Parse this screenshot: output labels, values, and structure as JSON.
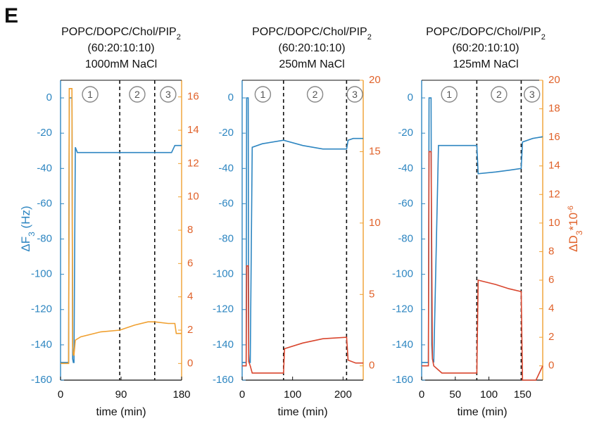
{
  "panel_letter": "E",
  "colors": {
    "frequency": "#2e86c1",
    "dissipation_trace": "#f0a030",
    "dissipation_axis": "#e0622a",
    "freq_trace": "#3f5aa8",
    "diss_trace_red": "#d9462e"
  },
  "ylabel_left": "ΔF",
  "ylabel_left_sub": "3",
  "ylabel_left_unit": " (Hz)",
  "ylabel_right": "ΔD",
  "ylabel_right_sub": "3",
  "ylabel_right_suffix": "*10",
  "ylabel_right_sup": "-6",
  "chart_data": [
    {
      "type": "line",
      "title": [
        "POPC/DOPC/Chol/PIP",
        "(60:20:10:10)",
        "1000mM NaCl"
      ],
      "title_sub": "2",
      "xlabel": "time (min)",
      "xlim": [
        0,
        180
      ],
      "xticks": [
        0,
        90,
        180
      ],
      "ylim_left": [
        -160,
        10
      ],
      "yticks_left": [
        0,
        -20,
        -40,
        -60,
        -80,
        -100,
        -120,
        -140,
        -160
      ],
      "ylim_right": [
        -1,
        17
      ],
      "yticks_right": [
        0,
        2,
        4,
        6,
        8,
        10,
        12,
        14,
        16
      ],
      "phases": [
        "1",
        "2",
        "3"
      ],
      "phase_boundaries": [
        88,
        140
      ],
      "series": [
        {
          "axis": "left",
          "color_key": "frequency",
          "x": [
            0,
            12,
            13,
            15,
            17,
            18,
            19,
            20,
            22,
            25,
            60,
            88,
            120,
            140,
            165,
            170,
            173,
            175,
            180
          ],
          "y": [
            -150,
            -150,
            0,
            0,
            0,
            -148,
            -150,
            -150,
            -28,
            -31,
            -31,
            -31,
            -31,
            -31,
            -31,
            -27,
            -27,
            -27,
            -27
          ]
        },
        {
          "axis": "right",
          "color_key": "dissipation_trace",
          "x": [
            0,
            12,
            13,
            15,
            17,
            18,
            19,
            20,
            22,
            30,
            60,
            88,
            110,
            130,
            140,
            160,
            165,
            170,
            172,
            180
          ],
          "y": [
            0,
            0,
            16.5,
            16.5,
            16.5,
            1.0,
            0.5,
            0.5,
            1.4,
            1.6,
            1.9,
            2.0,
            2.3,
            2.5,
            2.5,
            2.4,
            2.4,
            2.4,
            1.8,
            1.8
          ]
        }
      ]
    },
    {
      "type": "line",
      "title": [
        "POPC/DOPC/Chol/PIP",
        "(60:20:10:10)",
        "250mM NaCl"
      ],
      "title_sub": "2",
      "xlabel": "time (min)",
      "xlim": [
        0,
        240
      ],
      "xticks": [
        0,
        100,
        200
      ],
      "ylim_left": [
        -160,
        10
      ],
      "yticks_left": [
        0,
        -20,
        -40,
        -60,
        -80,
        -100,
        -120,
        -140,
        -160
      ],
      "ylim_right": [
        -1,
        20
      ],
      "yticks_right": [
        0,
        5,
        10,
        15,
        20
      ],
      "phases": [
        "1",
        "2",
        "3"
      ],
      "phase_boundaries": [
        82,
        207
      ],
      "series": [
        {
          "axis": "left",
          "color_key": "frequency",
          "x": [
            0,
            8,
            9,
            11,
            12,
            13,
            14,
            16,
            20,
            40,
            82,
            120,
            160,
            207,
            210,
            220,
            240
          ],
          "y": [
            -150,
            -150,
            0,
            0,
            0,
            -145,
            -150,
            -150,
            -28,
            -26,
            -24,
            -27,
            -29,
            -29,
            -24,
            -23,
            -23
          ]
        },
        {
          "axis": "right",
          "color_key": "diss_trace_red",
          "x": [
            0,
            8,
            9,
            11,
            12,
            13,
            16,
            20,
            50,
            82,
            84,
            120,
            160,
            207,
            210,
            225,
            240
          ],
          "y": [
            0,
            0,
            7,
            7,
            7,
            0.3,
            0,
            -0.5,
            -0.5,
            -0.5,
            1.2,
            1.6,
            1.9,
            2.0,
            0.4,
            0.2,
            0.2
          ]
        }
      ]
    },
    {
      "type": "line",
      "title": [
        "POPC/DOPC/Chol/PIP",
        "(60:20:10:10)",
        "125mM NaCl"
      ],
      "title_sub": "2",
      "xlabel": "time (min)",
      "xlim": [
        0,
        180
      ],
      "xticks": [
        0,
        50,
        100,
        150
      ],
      "ylim_left": [
        -160,
        10
      ],
      "yticks_left": [
        0,
        -20,
        -40,
        -60,
        -80,
        -100,
        -120,
        -140,
        -160
      ],
      "ylim_right": [
        -1,
        20
      ],
      "yticks_right": [
        0,
        2,
        4,
        6,
        8,
        10,
        12,
        14,
        16,
        18,
        20
      ],
      "phases": [
        "1",
        "2",
        "3"
      ],
      "phase_boundaries": [
        82,
        148
      ],
      "series": [
        {
          "axis": "left",
          "color_key": "frequency",
          "x": [
            0,
            10,
            11,
            13,
            14,
            15,
            16,
            18,
            25,
            50,
            82,
            84,
            110,
            130,
            148,
            150,
            165,
            180
          ],
          "y": [
            -150,
            -150,
            0,
            0,
            0,
            -140,
            -148,
            -150,
            -27,
            -27,
            -27,
            -43,
            -42,
            -41,
            -40,
            -25,
            -23,
            -22
          ]
        },
        {
          "axis": "right",
          "color_key": "diss_trace_red",
          "x": [
            0,
            10,
            11,
            13,
            14,
            16,
            18,
            30,
            82,
            84,
            110,
            130,
            148,
            150,
            160,
            170,
            175,
            180
          ],
          "y": [
            0,
            0,
            15,
            15,
            15,
            0.5,
            0,
            -0.5,
            -0.5,
            6.0,
            5.7,
            5.4,
            5.2,
            -1.0,
            -1.0,
            -1.0,
            -0.5,
            0
          ]
        }
      ]
    }
  ]
}
